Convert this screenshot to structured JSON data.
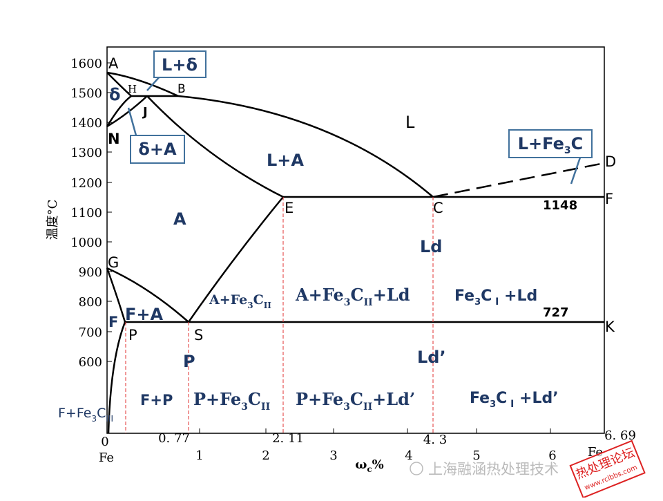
{
  "axis": {
    "y_label": "温度°C",
    "y_ticks": [
      "1600",
      "1500",
      "1400",
      "1300",
      "1200",
      "1100",
      "1000",
      "900",
      "800",
      "700",
      "600"
    ],
    "x_ticks": [
      "0",
      "0. 77",
      "1",
      "2",
      "2. 11",
      "3",
      "4",
      "4. 3",
      "5",
      "6",
      "6. 69"
    ],
    "x_origin": "Fe",
    "x_end": "Fe",
    "x_label": [
      "ω",
      "c",
      "%"
    ]
  },
  "points": {
    "A": "A",
    "H": "H",
    "B": "B",
    "N": "N",
    "J": "J",
    "E": "E",
    "C": "C",
    "D": "D",
    "F_right": "F",
    "G": "G",
    "F_left": "F",
    "P": "P",
    "S": "S",
    "K": "K",
    "eutectic": "1148",
    "eutectoid": "727"
  },
  "regions": {
    "delta": "δ",
    "L": "L",
    "L_A": "L+A",
    "A": "A",
    "Ld": "Ld",
    "Ld_prime": "Ld’",
    "P": "P",
    "F_A": "F+A",
    "A_Fe3CII": [
      "A+Fe",
      "3",
      "C",
      "II"
    ],
    "A_Fe3CII_Ld": [
      "A+Fe",
      "3",
      "C",
      "II",
      "+Ld"
    ],
    "Fe3CI_Ld": [
      "Fe",
      "3",
      "C",
      " I",
      " +Ld"
    ],
    "F_Fe3CIII": [
      "F+Fe",
      "3",
      "C",
      "III"
    ],
    "F_P": "F+P",
    "P_Fe3CII": [
      "P+Fe",
      "3",
      "C",
      "II"
    ],
    "P_Fe3CII_Ldp": [
      "P+Fe",
      "3",
      "C",
      "II",
      "+Ld’"
    ],
    "Fe3CI_Ldp": [
      "Fe",
      "3",
      "C",
      " I",
      " +Ld’"
    ]
  },
  "callouts": {
    "L_delta": "L+δ",
    "delta_A": "δ+A",
    "L_Fe3C": [
      "L+Fe",
      "3",
      "C"
    ]
  },
  "watermark": {
    "text": "上海融涵热处理技术",
    "stamp": "热处理论坛",
    "url": "www.rclbbs.com"
  }
}
